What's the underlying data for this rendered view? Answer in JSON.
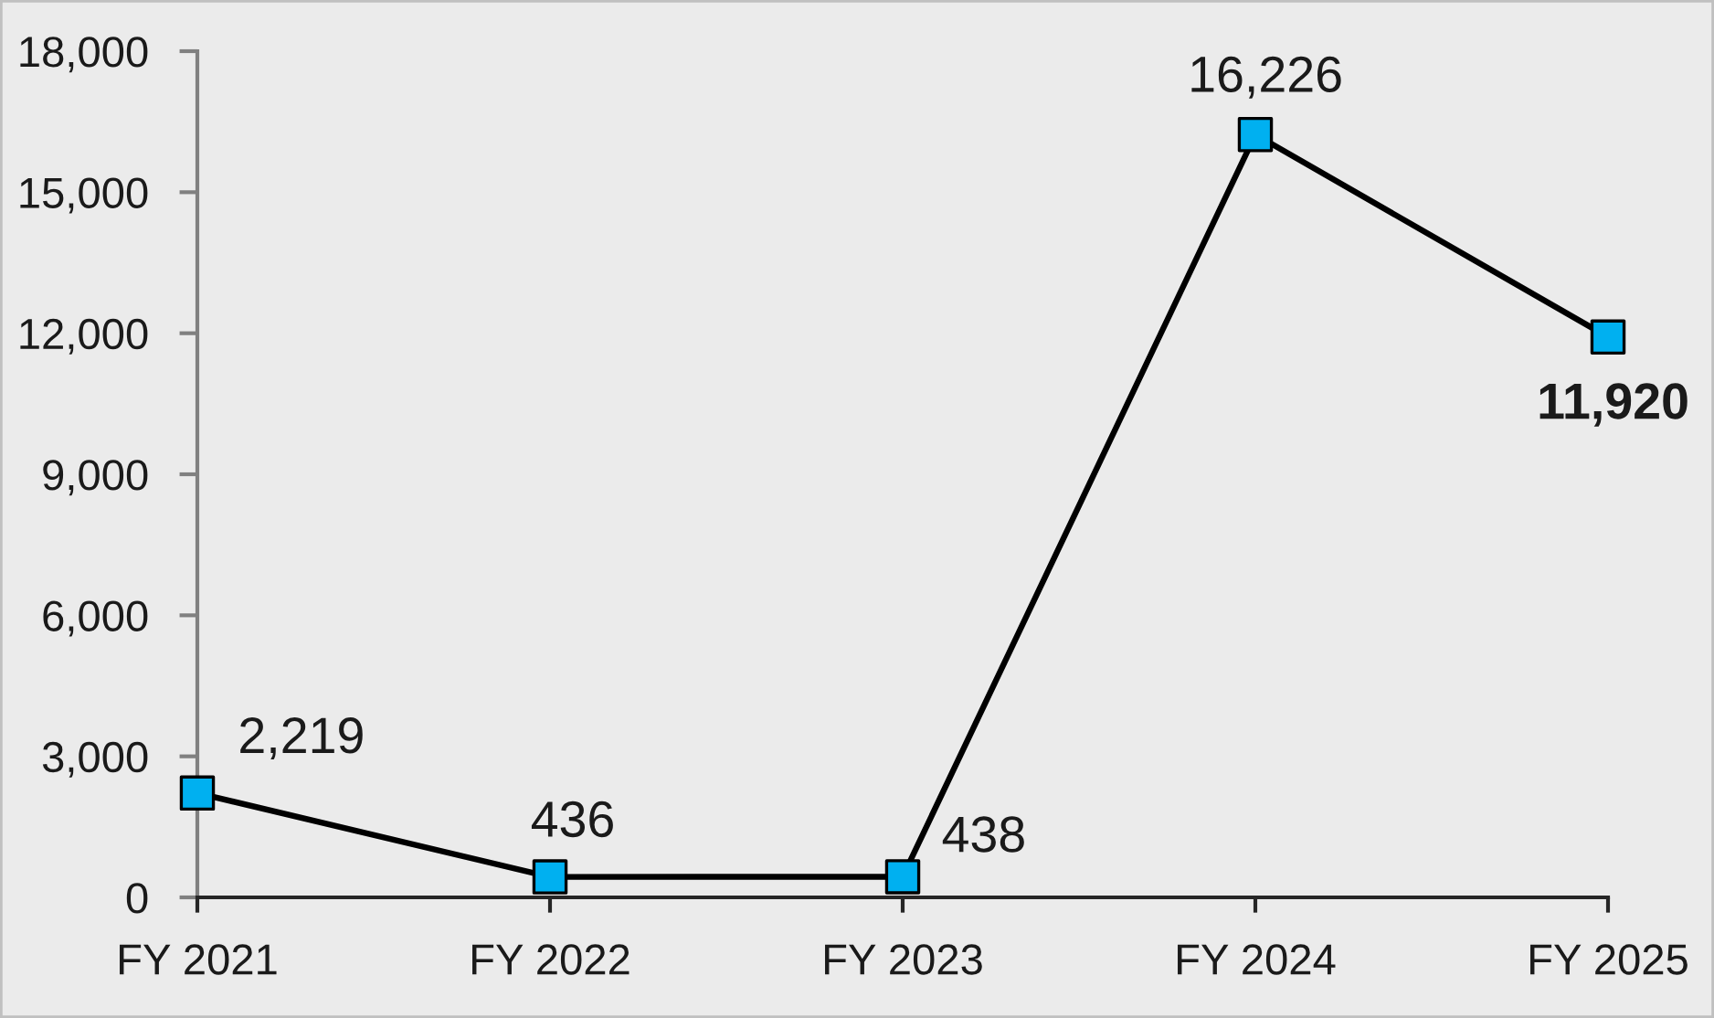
{
  "chart_data": {
    "type": "line",
    "categories": [
      "FY 2021",
      "FY 2022",
      "FY 2023",
      "FY 2024",
      "FY 2025"
    ],
    "series": [
      {
        "color": "#000000",
        "colors": [
          "#00b0f0",
          "#00b0f0",
          "#00b0f0",
          "#00b0f0",
          "#00b0f0"
        ],
        "values": [
          2219,
          436,
          438,
          16226,
          11920
        ],
        "value_labels": [
          "2,219",
          "436",
          "438",
          "16,226",
          "11,920"
        ]
      }
    ],
    "ylim": [
      0,
      18000
    ],
    "yticks": [
      0,
      {
        "value": 3000,
        "label": "3,000"
      },
      {
        "value": 6000,
        "label": "6,000"
      },
      {
        "value": 9000,
        "label": "9,000"
      },
      {
        "value": 12000,
        "label": "12,000"
      },
      {
        "value": 15000,
        "label": "15,000"
      },
      {
        "value": 18000,
        "label": "18,000"
      }
    ],
    "marker": "square",
    "line_style": "solid",
    "grid": false
  }
}
